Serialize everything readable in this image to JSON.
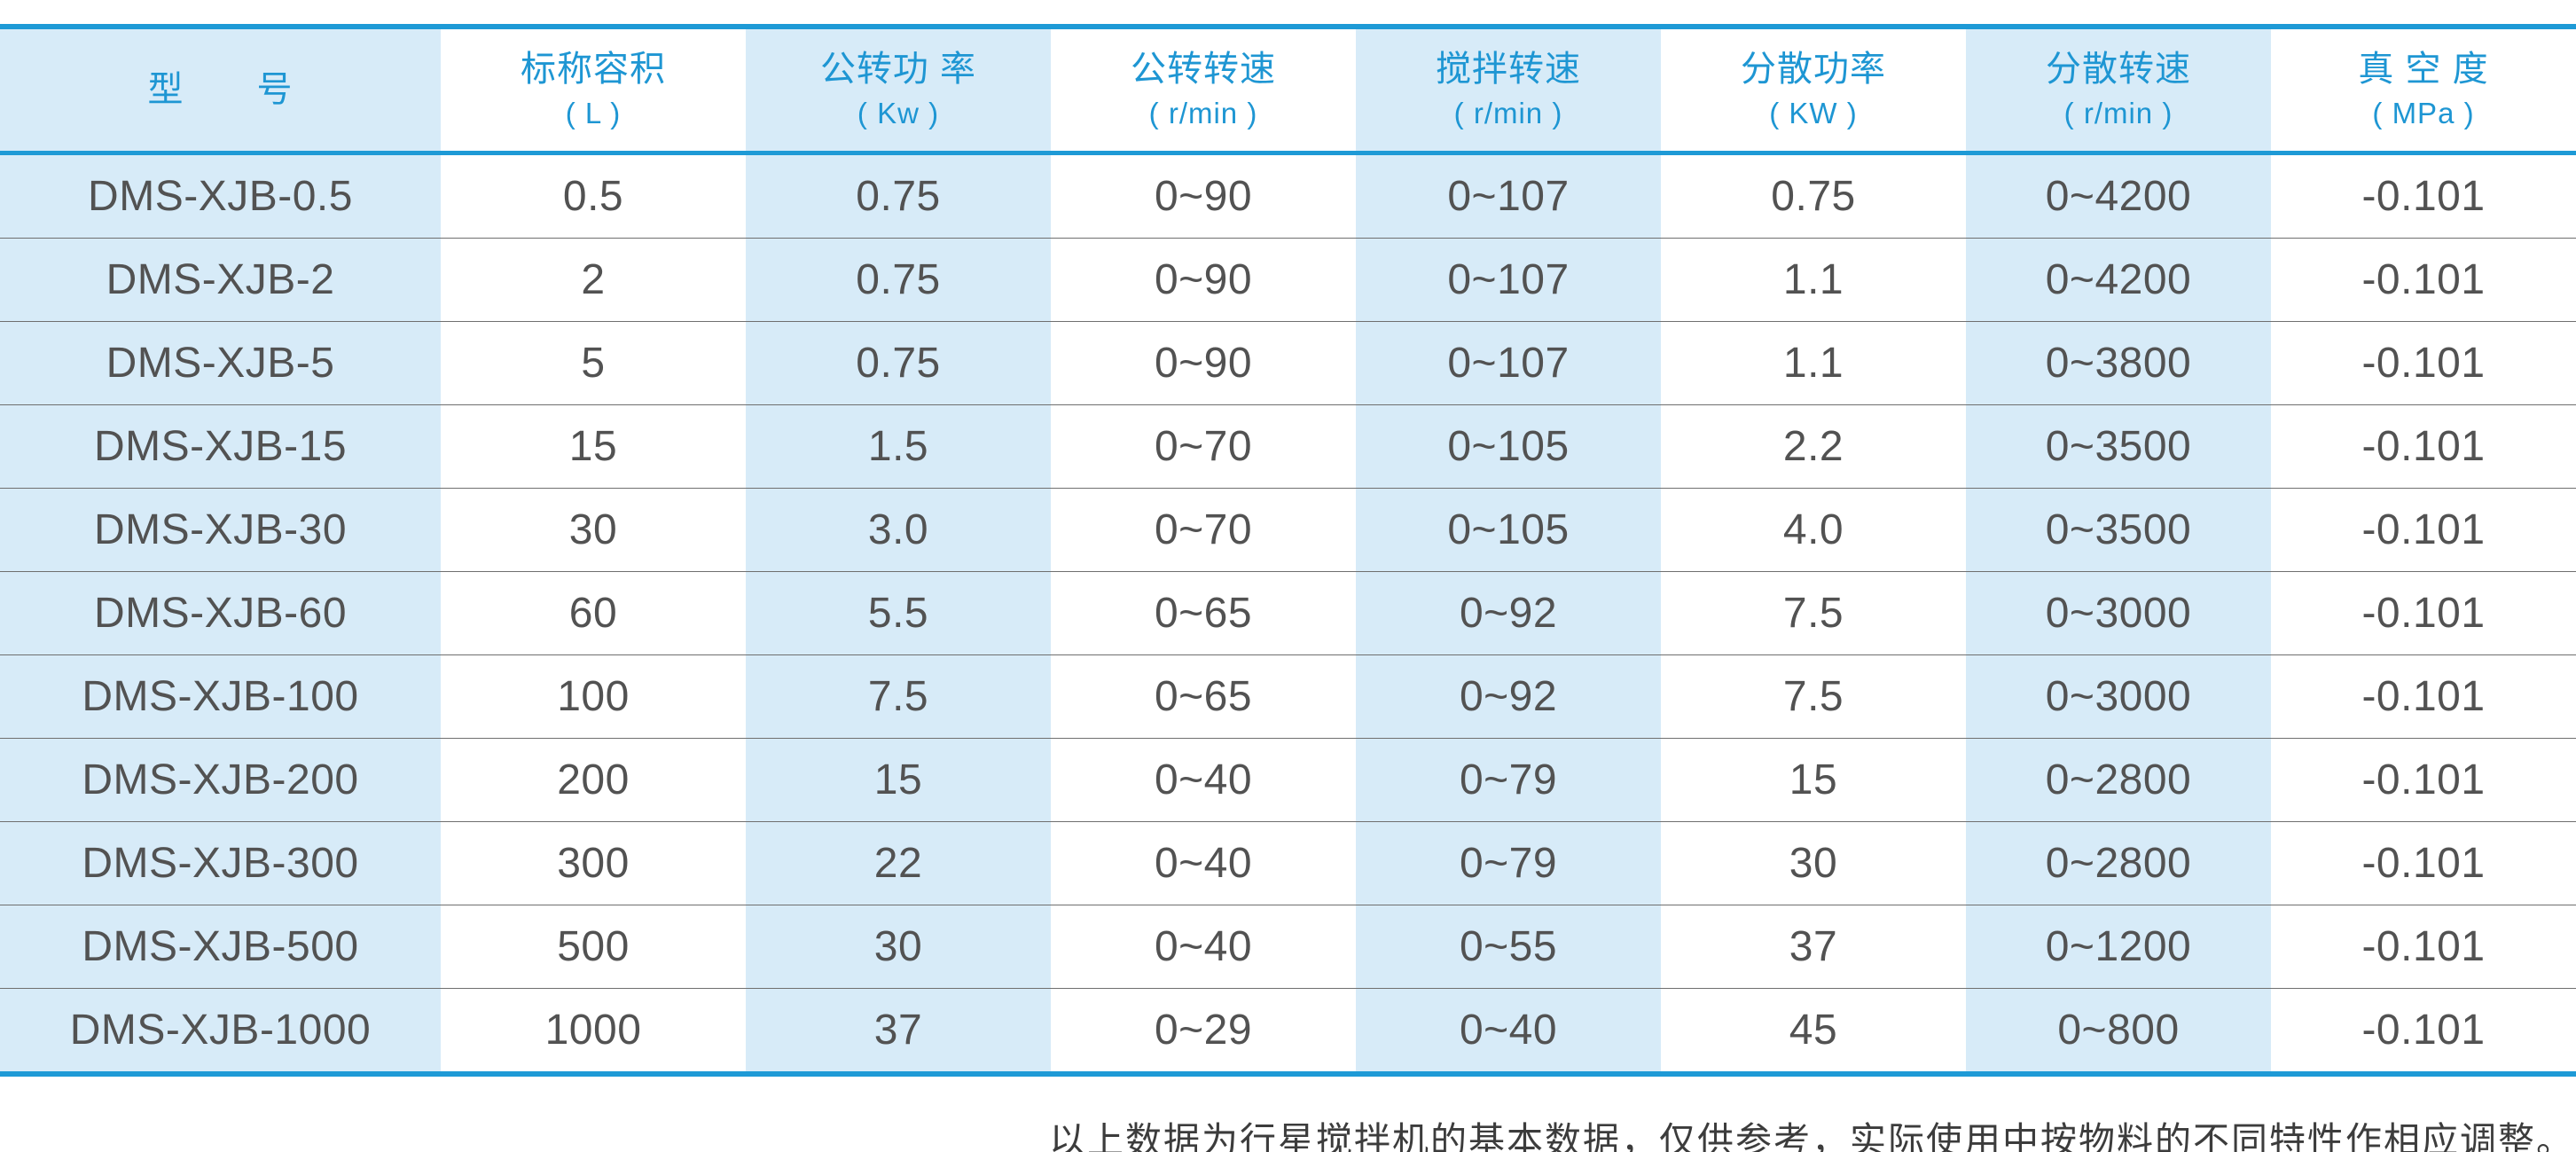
{
  "table": {
    "columns": [
      {
        "title": "型　　号",
        "unit": "",
        "shaded": true
      },
      {
        "title": "标称容积",
        "unit": "( L )",
        "shaded": false
      },
      {
        "title": "公转功 率",
        "unit": "( Kw )",
        "shaded": true
      },
      {
        "title": "公转转速",
        "unit": "( r/min )",
        "shaded": false
      },
      {
        "title": "搅拌转速",
        "unit": "( r/min )",
        "shaded": true
      },
      {
        "title": "分散功率",
        "unit": "( KW )",
        "shaded": false
      },
      {
        "title": "分散转速",
        "unit": "( r/min )",
        "shaded": true
      },
      {
        "title": "真 空 度",
        "unit": "( MPa )",
        "shaded": false
      }
    ],
    "rows": [
      [
        "DMS-XJB-0.5",
        "0.5",
        "0.75",
        "0~90",
        "0~107",
        "0.75",
        "0~4200",
        "-0.101"
      ],
      [
        "DMS-XJB-2",
        "2",
        "0.75",
        "0~90",
        "0~107",
        "1.1",
        "0~4200",
        "-0.101"
      ],
      [
        "DMS-XJB-5",
        "5",
        "0.75",
        "0~90",
        "0~107",
        "1.1",
        "0~3800",
        "-0.101"
      ],
      [
        "DMS-XJB-15",
        "15",
        "1.5",
        "0~70",
        "0~105",
        "2.2",
        "0~3500",
        "-0.101"
      ],
      [
        "DMS-XJB-30",
        "30",
        "3.0",
        "0~70",
        "0~105",
        "4.0",
        "0~3500",
        "-0.101"
      ],
      [
        "DMS-XJB-60",
        "60",
        "5.5",
        "0~65",
        "0~92",
        "7.5",
        "0~3000",
        "-0.101"
      ],
      [
        "DMS-XJB-100",
        "100",
        "7.5",
        "0~65",
        "0~92",
        "7.5",
        "0~3000",
        "-0.101"
      ],
      [
        "DMS-XJB-200",
        "200",
        "15",
        "0~40",
        "0~79",
        "15",
        "0~2800",
        "-0.101"
      ],
      [
        "DMS-XJB-300",
        "300",
        "22",
        "0~40",
        "0~79",
        "30",
        "0~2800",
        "-0.101"
      ],
      [
        "DMS-XJB-500",
        "500",
        "30",
        "0~40",
        "0~55",
        "37",
        "0~1200",
        "-0.101"
      ],
      [
        "DMS-XJB-1000",
        "1000",
        "37",
        "0~29",
        "0~40",
        "45",
        "0~800",
        "-0.101"
      ]
    ]
  },
  "footer": {
    "note": "以上数据为行星搅拌机的基本数据，仅供参考，实际使用中按物料的不同特性作相应调整。"
  },
  "colors": {
    "accent_blue": "#1E9AD6",
    "header_text_blue": "#1E96D3",
    "column_shade_blue": "#D7EBF8",
    "body_text": "#525252",
    "row_separator": "#6F6F6F"
  }
}
